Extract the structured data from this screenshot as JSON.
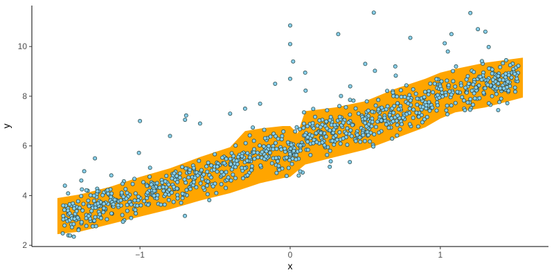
{
  "chart_data": {
    "type": "scatter",
    "title": "",
    "xlabel": "x",
    "ylabel": "y",
    "xlim": [
      -1.72,
      1.72
    ],
    "ylim": [
      1.95,
      11.65
    ],
    "x_ticks": [
      -1,
      0,
      1
    ],
    "x_tick_labels": [
      "−1",
      "0",
      "1"
    ],
    "y_ticks": [
      2,
      4,
      6,
      8,
      10
    ],
    "y_tick_labels": [
      "2",
      "4",
      "6",
      "8",
      "10"
    ],
    "grid": false,
    "legend": "none",
    "band": {
      "name": "",
      "color": "#FFA500",
      "x": [
        -1.55,
        -1.4,
        -1.2,
        -1.0,
        -0.8,
        -0.6,
        -0.4,
        -0.3,
        -0.2,
        -0.05,
        0.0,
        0.05,
        0.1,
        0.3,
        0.5,
        0.7,
        0.9,
        1.0,
        1.1,
        1.3,
        1.55
      ],
      "upper": [
        3.9,
        4.05,
        4.35,
        4.75,
        5.1,
        5.55,
        5.95,
        6.6,
        6.7,
        6.8,
        6.8,
        6.5,
        7.4,
        7.55,
        7.8,
        8.3,
        8.7,
        8.95,
        9.1,
        9.35,
        9.55
      ],
      "lower": [
        2.45,
        2.55,
        2.85,
        3.15,
        3.45,
        3.8,
        4.1,
        4.3,
        4.5,
        4.7,
        4.75,
        5.0,
        5.25,
        5.55,
        5.85,
        6.3,
        6.75,
        7.1,
        7.35,
        7.55,
        7.95
      ]
    },
    "points_style": {
      "fill": "#87CEEB",
      "stroke": "#2F4F4F",
      "count": 1000,
      "noise_sd": 0.4
    },
    "trend": {
      "slope": 2.0,
      "intercept": 5.9
    },
    "outliers": {
      "x": [
        -1.5,
        -1.3,
        -1.0,
        -0.8,
        -0.7,
        -0.6,
        -0.4,
        -0.3,
        -0.2,
        -0.1,
        0.0,
        0.0,
        0.0,
        0.02,
        0.1,
        0.32,
        0.4,
        0.5,
        0.7,
        0.8,
        1.05,
        1.2,
        1.25,
        1.3
      ],
      "y": [
        4.4,
        5.5,
        7.0,
        6.4,
        7.05,
        6.9,
        7.3,
        7.5,
        7.7,
        8.5,
        8.7,
        10.1,
        10.85,
        9.4,
        8.95,
        10.5,
        8.4,
        9.3,
        9.2,
        10.35,
        9.8,
        11.35,
        10.7,
        10.6
      ]
    }
  }
}
